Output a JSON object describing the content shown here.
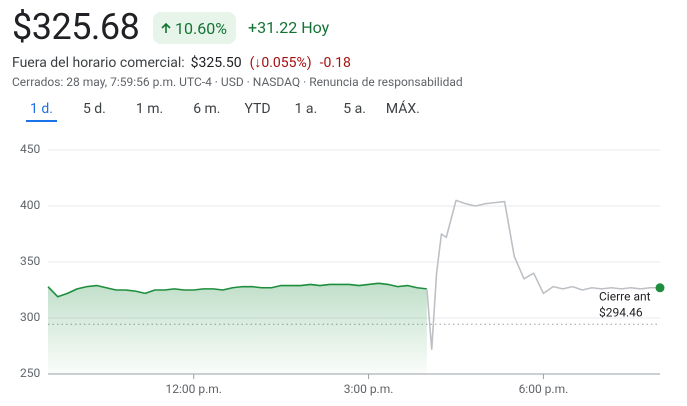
{
  "header": {
    "price": "$325.68",
    "change_pct": "10.60%",
    "change_abs": "+31.22 Hoy",
    "after_hours_label": "Fuera del horario comercial:",
    "after_hours_price": "$325.50",
    "after_hours_pct": "(↓0.055%)",
    "after_hours_abs": "-0.18",
    "status": "Cerrados: 28 may, 7:59:56 p.m. UTC-4 · USD · NASDAQ · Renuncia de responsabilidad"
  },
  "tabs": [
    "1 d.",
    "5 d.",
    "1 m.",
    "6 m.",
    "YTD",
    "1 a.",
    "5 a.",
    "MÁX."
  ],
  "chart_data": {
    "type": "line",
    "x": [
      570,
      580,
      590,
      600,
      610,
      620,
      630,
      640,
      650,
      660,
      670,
      680,
      690,
      700,
      710,
      720,
      730,
      740,
      750,
      760,
      770,
      780,
      790,
      800,
      810,
      820,
      830,
      840,
      850,
      860,
      870,
      880,
      890,
      900,
      910,
      920,
      930,
      940,
      950,
      960,
      965,
      970,
      975,
      980,
      990,
      1000,
      1010,
      1020,
      1030,
      1040,
      1050,
      1060,
      1070,
      1080,
      1090,
      1100,
      1110,
      1120,
      1130,
      1140,
      1150,
      1160,
      1170,
      1180,
      1190,
      1200
    ],
    "series": [
      {
        "color": "#1e8e3e",
        "values": [
          328,
          319,
          322,
          326,
          328,
          329,
          327,
          325,
          325,
          324,
          322,
          325,
          325,
          326,
          325,
          325,
          326,
          326,
          325,
          327,
          328,
          328,
          327,
          327,
          329,
          329,
          329,
          330,
          329,
          330,
          330,
          330,
          329,
          330,
          331,
          330,
          328,
          329,
          327,
          326,
          null,
          null,
          null,
          null,
          null,
          null,
          null,
          null,
          null,
          null,
          null,
          null,
          null,
          null,
          null,
          null,
          null,
          null,
          null,
          null,
          null,
          null,
          null,
          null,
          null,
          null
        ]
      },
      {
        "color": "#bdc1c6",
        "values": [
          null,
          null,
          null,
          null,
          null,
          null,
          null,
          null,
          null,
          null,
          null,
          null,
          null,
          null,
          null,
          null,
          null,
          null,
          null,
          null,
          null,
          null,
          null,
          null,
          null,
          null,
          null,
          null,
          null,
          null,
          null,
          null,
          null,
          null,
          null,
          null,
          null,
          null,
          null,
          326,
          272,
          340,
          375,
          372,
          405,
          402,
          400,
          402,
          403,
          404,
          355,
          335,
          340,
          322,
          328,
          326,
          328,
          325,
          327,
          326,
          327,
          326,
          327,
          326,
          327,
          327
        ]
      }
    ],
    "xlim": [
      570,
      1200
    ],
    "xticks": [
      {
        "value": 720,
        "label": "12:00 p.m."
      },
      {
        "value": 900,
        "label": "3:00 p.m."
      },
      {
        "value": 1080,
        "label": "6:00 p.m."
      }
    ],
    "ylim": [
      250,
      450
    ],
    "yticks": [
      250,
      300,
      350,
      400,
      450
    ],
    "grid": true,
    "previous_close_title": "Cierre ant",
    "previous_close": {
      "value": 294.46,
      "label": "$294.46"
    }
  }
}
